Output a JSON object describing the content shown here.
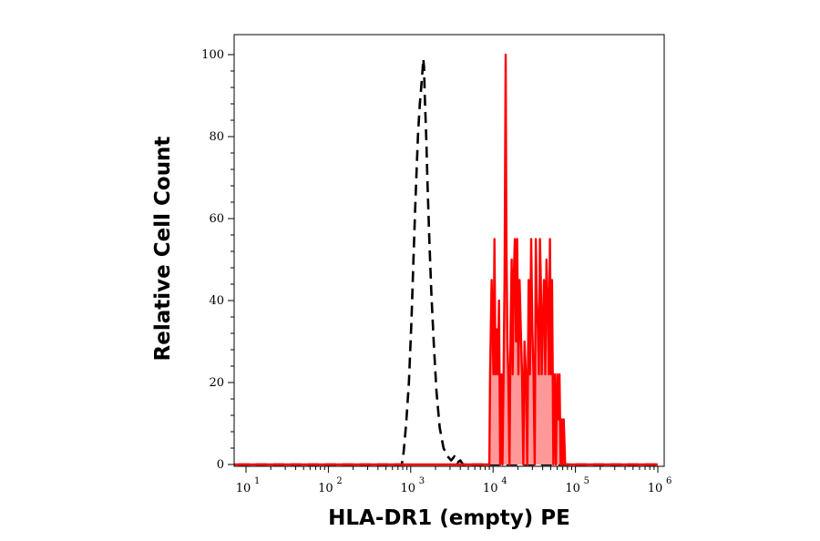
{
  "chart_data": {
    "type": "area",
    "title": "",
    "xlabel": "HLA-DR1 (empty) PE",
    "ylabel": "Relative Cell Count",
    "x_scale": "log",
    "xlim": [
      10,
      1000000
    ],
    "ylim": [
      0,
      100
    ],
    "grid": false,
    "x_tick_labels": [
      {
        "value": 10,
        "base": "10",
        "exp": "1"
      },
      {
        "value": 100,
        "base": "10",
        "exp": "2"
      },
      {
        "value": 1000,
        "base": "10",
        "exp": "3"
      },
      {
        "value": 10000,
        "base": "10",
        "exp": "4"
      },
      {
        "value": 100000,
        "base": "10",
        "exp": "5"
      },
      {
        "value": 1000000,
        "base": "10",
        "exp": "6"
      }
    ],
    "y_ticks": [
      0,
      20,
      40,
      60,
      80,
      100
    ],
    "y_tick_labels": [
      "0",
      "20",
      "40",
      "60",
      "80",
      "100"
    ],
    "series": [
      {
        "style": "dashed",
        "color": "#000000",
        "fill": false,
        "x": [
          5,
          780,
          820,
          880,
          950,
          1020,
          1080,
          1130,
          1180,
          1230,
          1290,
          1340,
          1390,
          1420,
          1450,
          1480,
          1540,
          1600,
          1680,
          1780,
          1900,
          2050,
          2250,
          2500,
          2800,
          3100,
          3400,
          3700,
          4000,
          4300,
          1000000
        ],
        "y": [
          0,
          0,
          3,
          10,
          20,
          35,
          50,
          62,
          72,
          81,
          88,
          92,
          96,
          99,
          97,
          90,
          80,
          68,
          55,
          42,
          30,
          18,
          9,
          4,
          2,
          1,
          2,
          0.5,
          1,
          0,
          0
        ]
      },
      {
        "style": "solid",
        "color": "#ff0000",
        "fill": true,
        "fill_color": "#ff9999",
        "x": [
          5,
          9000,
          9200,
          9600,
          10100,
          10400,
          10700,
          11000,
          11400,
          11800,
          12200,
          12600,
          13000,
          13400,
          13800,
          14200,
          14500,
          14900,
          15300,
          15800,
          16300,
          16800,
          17300,
          17800,
          18400,
          19000,
          19600,
          20300,
          21000,
          21700,
          22500,
          23300,
          24100,
          25000,
          26000,
          27000,
          28000,
          29000,
          30000,
          31000,
          32000,
          33000,
          34000,
          35000,
          36000,
          37000,
          38000,
          39000,
          40000,
          41500,
          43000,
          44500,
          46000,
          47500,
          49000,
          50500,
          52000,
          54000,
          56000,
          58000,
          60000,
          62000,
          64000,
          66000,
          68000,
          70000,
          72000,
          75000,
          78000,
          81000,
          84000,
          88000,
          92000,
          1000000
        ],
        "y": [
          0,
          0,
          22,
          45,
          22,
          55,
          22,
          33,
          22,
          40,
          0,
          22,
          0,
          22,
          45,
          100,
          55,
          30,
          22,
          0,
          33,
          50,
          22,
          45,
          55,
          30,
          55,
          22,
          45,
          33,
          22,
          0,
          30,
          22,
          0,
          45,
          22,
          55,
          33,
          22,
          0,
          55,
          40,
          33,
          22,
          55,
          45,
          22,
          33,
          45,
          22,
          50,
          40,
          22,
          55,
          22,
          45,
          0,
          22,
          0,
          22,
          11,
          22,
          0,
          11,
          0,
          11,
          0,
          0,
          0,
          0,
          0,
          0,
          0
        ]
      }
    ]
  }
}
